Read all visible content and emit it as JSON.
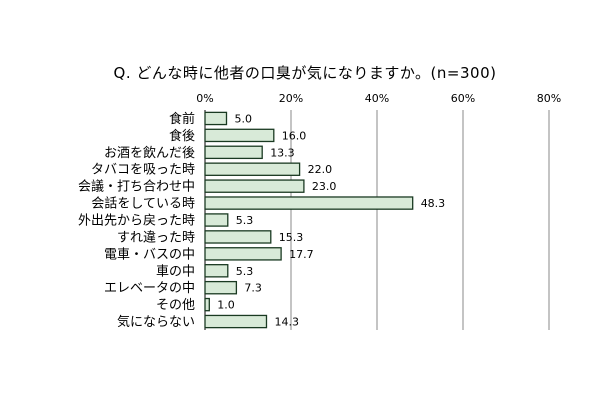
{
  "chart_data": {
    "type": "bar",
    "orientation": "horizontal",
    "title": "Q. どんな時に他者の口臭が気になりますか。(n=300)",
    "categories": [
      "食前",
      "食後",
      "お酒を飲んだ後",
      "タバコを吸った時",
      "会議・打ち合わせ中",
      "会話をしている時",
      "外出先から戻った時",
      "すれ違った時",
      "電車・バスの中",
      "車の中",
      "エレベータの中",
      "その他",
      "気にならない"
    ],
    "values": [
      5.0,
      16.0,
      13.3,
      22.0,
      23.0,
      48.3,
      5.3,
      15.3,
      17.7,
      5.3,
      7.3,
      1.0,
      14.3
    ],
    "value_labels": [
      "5.0",
      "16.0",
      "13.3",
      "22.0",
      "23.0",
      "48.3",
      "5.3",
      "15.3",
      "17.7",
      "5.3",
      "7.3",
      "1.0",
      "14.3"
    ],
    "xlim": [
      0,
      80
    ],
    "xticks": [
      "0%",
      "20%",
      "40%",
      "60%",
      "80%"
    ],
    "grid": true,
    "colors": {
      "bar_fill": "#d8ead8",
      "bar_stroke": "#1a3a22",
      "grid": "#888888"
    }
  }
}
